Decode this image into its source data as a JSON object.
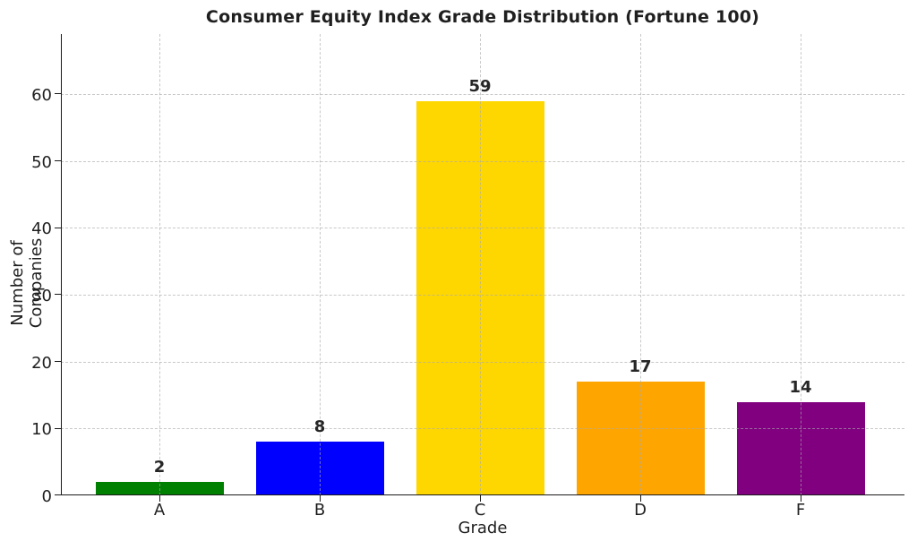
{
  "chart_data": {
    "type": "bar",
    "title": "Consumer Equity Index Grade Distribution (Fortune 100)",
    "xlabel": "Grade",
    "ylabel": "Number of Companies",
    "categories": [
      "A",
      "B",
      "C",
      "D",
      "F"
    ],
    "values": [
      2,
      8,
      59,
      17,
      14
    ],
    "bar_value_labels": [
      "2",
      "8",
      "59",
      "17",
      "14"
    ],
    "bar_colors": [
      "#008000",
      "#0000ff",
      "#ffd700",
      "#ffa500",
      "#800080"
    ],
    "yticks": [
      0,
      10,
      20,
      30,
      40,
      50,
      60
    ],
    "ylim": [
      0,
      69
    ],
    "grid": {
      "style": "dashed",
      "axes": "both",
      "color": "#aaaaaa",
      "drawn_above_bars": true
    },
    "legend": "none",
    "background_color": "#ffffff",
    "text_color": "#1f1f1f",
    "axis_color": "#1a1a1a"
  }
}
